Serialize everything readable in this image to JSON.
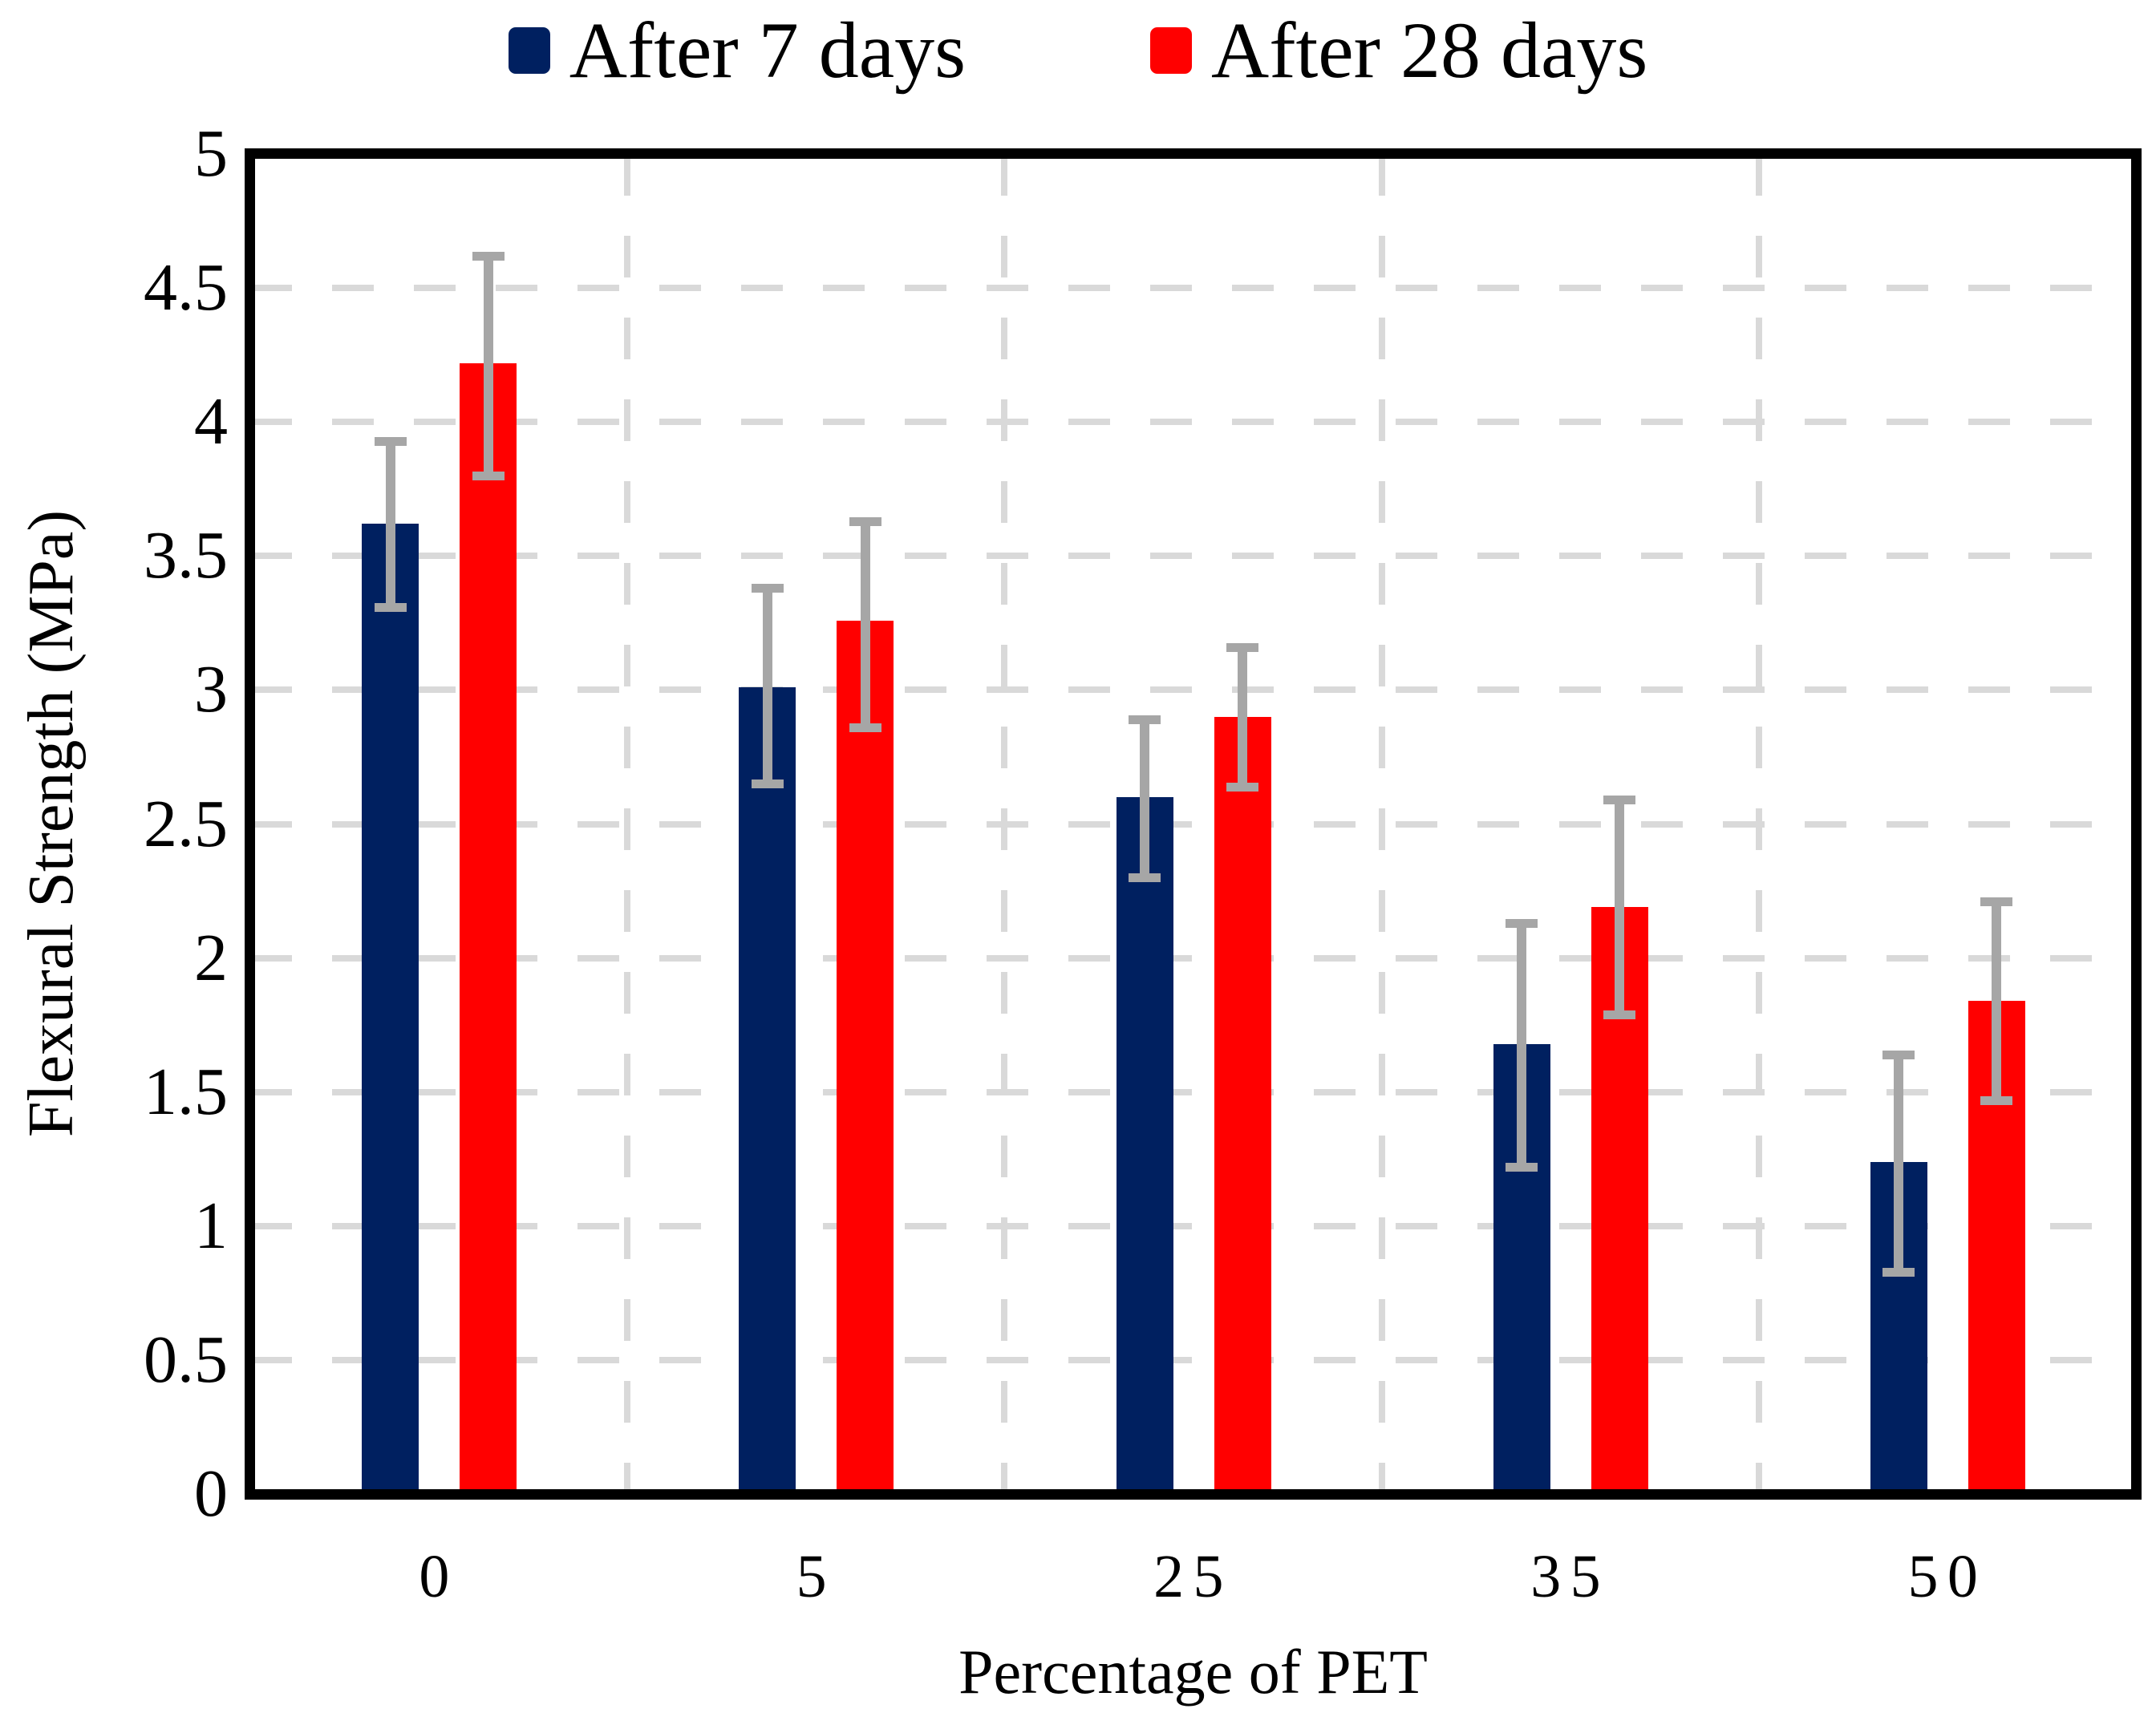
{
  "legend": {
    "items": [
      {
        "label": "After 7 days",
        "color": "#002060"
      },
      {
        "label": "After 28 days",
        "color": "#FF0000"
      }
    ]
  },
  "chart_data": {
    "type": "bar",
    "title": "",
    "xlabel": "Percentage of PET",
    "ylabel": "Flexural Strength (MPa)",
    "categories": [
      "0",
      "5",
      "25",
      "35",
      "50"
    ],
    "series": [
      {
        "name": "After 7 days",
        "color": "#002060",
        "values": [
          3.62,
          3.01,
          2.6,
          1.68,
          1.24
        ],
        "err_low": [
          3.31,
          2.65,
          2.3,
          1.22,
          0.83
        ],
        "err_high": [
          3.93,
          3.38,
          2.89,
          2.13,
          1.64
        ]
      },
      {
        "name": "After 28 days",
        "color": "#FF0000",
        "values": [
          4.22,
          3.26,
          2.9,
          2.19,
          1.84
        ],
        "err_low": [
          3.8,
          2.86,
          2.64,
          1.79,
          1.47
        ],
        "err_high": [
          4.62,
          3.63,
          3.16,
          2.59,
          2.21
        ]
      }
    ],
    "ylim": [
      0,
      5
    ],
    "y_ticks": [
      {
        "v": 5,
        "label": "5"
      },
      {
        "v": 4.5,
        "label": "4.5"
      },
      {
        "v": 4,
        "label": "4"
      },
      {
        "v": 3.5,
        "label": "3.5"
      },
      {
        "v": 3,
        "label": "3"
      },
      {
        "v": 2.5,
        "label": "2.5"
      },
      {
        "v": 2,
        "label": "2"
      },
      {
        "v": 1.5,
        "label": "1.5"
      },
      {
        "v": 1,
        "label": "1"
      },
      {
        "v": 0.5,
        "label": "0.5"
      },
      {
        "v": 0,
        "label": "0"
      }
    ],
    "grid": "dashed",
    "legend_position": "top-center",
    "colors": {
      "error_bar": "#A6A6A6",
      "gridline": "#D9D9D9",
      "axis": "#000000",
      "background": "#FFFFFF"
    }
  }
}
